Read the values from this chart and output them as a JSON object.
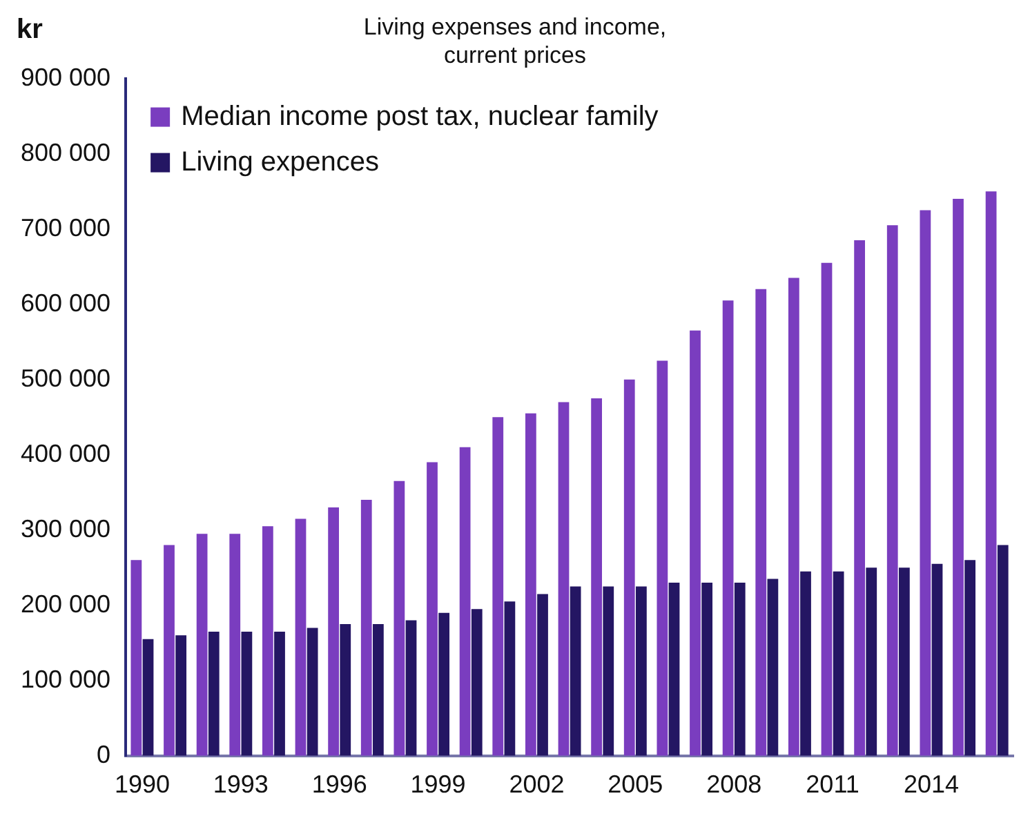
{
  "chart_data": {
    "type": "bar",
    "title": "Living expenses and income,\ncurrent prices",
    "ylabel": "kr",
    "categories": [
      "1990",
      null,
      null,
      "1993",
      null,
      null,
      "1996",
      null,
      null,
      "1999",
      null,
      null,
      "2002",
      null,
      null,
      "2005",
      null,
      null,
      "2008",
      null,
      null,
      "2011",
      null,
      null,
      "2014",
      null,
      null
    ],
    "series": [
      {
        "name": "Median income post tax, nuclear family",
        "color": "#7a3dbf",
        "values": [
          260000,
          280000,
          295000,
          295000,
          305000,
          315000,
          330000,
          340000,
          365000,
          390000,
          410000,
          450000,
          455000,
          470000,
          475000,
          500000,
          525000,
          565000,
          605000,
          620000,
          635000,
          655000,
          685000,
          705000,
          725000,
          740000,
          750000
        ]
      },
      {
        "name": "Living expences",
        "color": "#241663",
        "values": [
          155000,
          160000,
          165000,
          165000,
          165000,
          170000,
          175000,
          175000,
          180000,
          190000,
          195000,
          205000,
          215000,
          225000,
          225000,
          225000,
          230000,
          230000,
          230000,
          235000,
          245000,
          245000,
          250000,
          250000,
          255000,
          260000,
          280000
        ]
      }
    ],
    "ylim": [
      0,
      900000
    ],
    "yticks": [
      {
        "value": 0,
        "label": "0"
      },
      {
        "value": 100000,
        "label": "100 000"
      },
      {
        "value": 200000,
        "label": "200 000"
      },
      {
        "value": 300000,
        "label": "300 000"
      },
      {
        "value": 400000,
        "label": "400 000"
      },
      {
        "value": 500000,
        "label": "500 000"
      },
      {
        "value": 600000,
        "label": "600 000"
      },
      {
        "value": 700000,
        "label": "700 000"
      },
      {
        "value": 800000,
        "label": "800 000"
      },
      {
        "value": 900000,
        "label": "900 000"
      }
    ],
    "grid": false,
    "legend": "top left"
  }
}
